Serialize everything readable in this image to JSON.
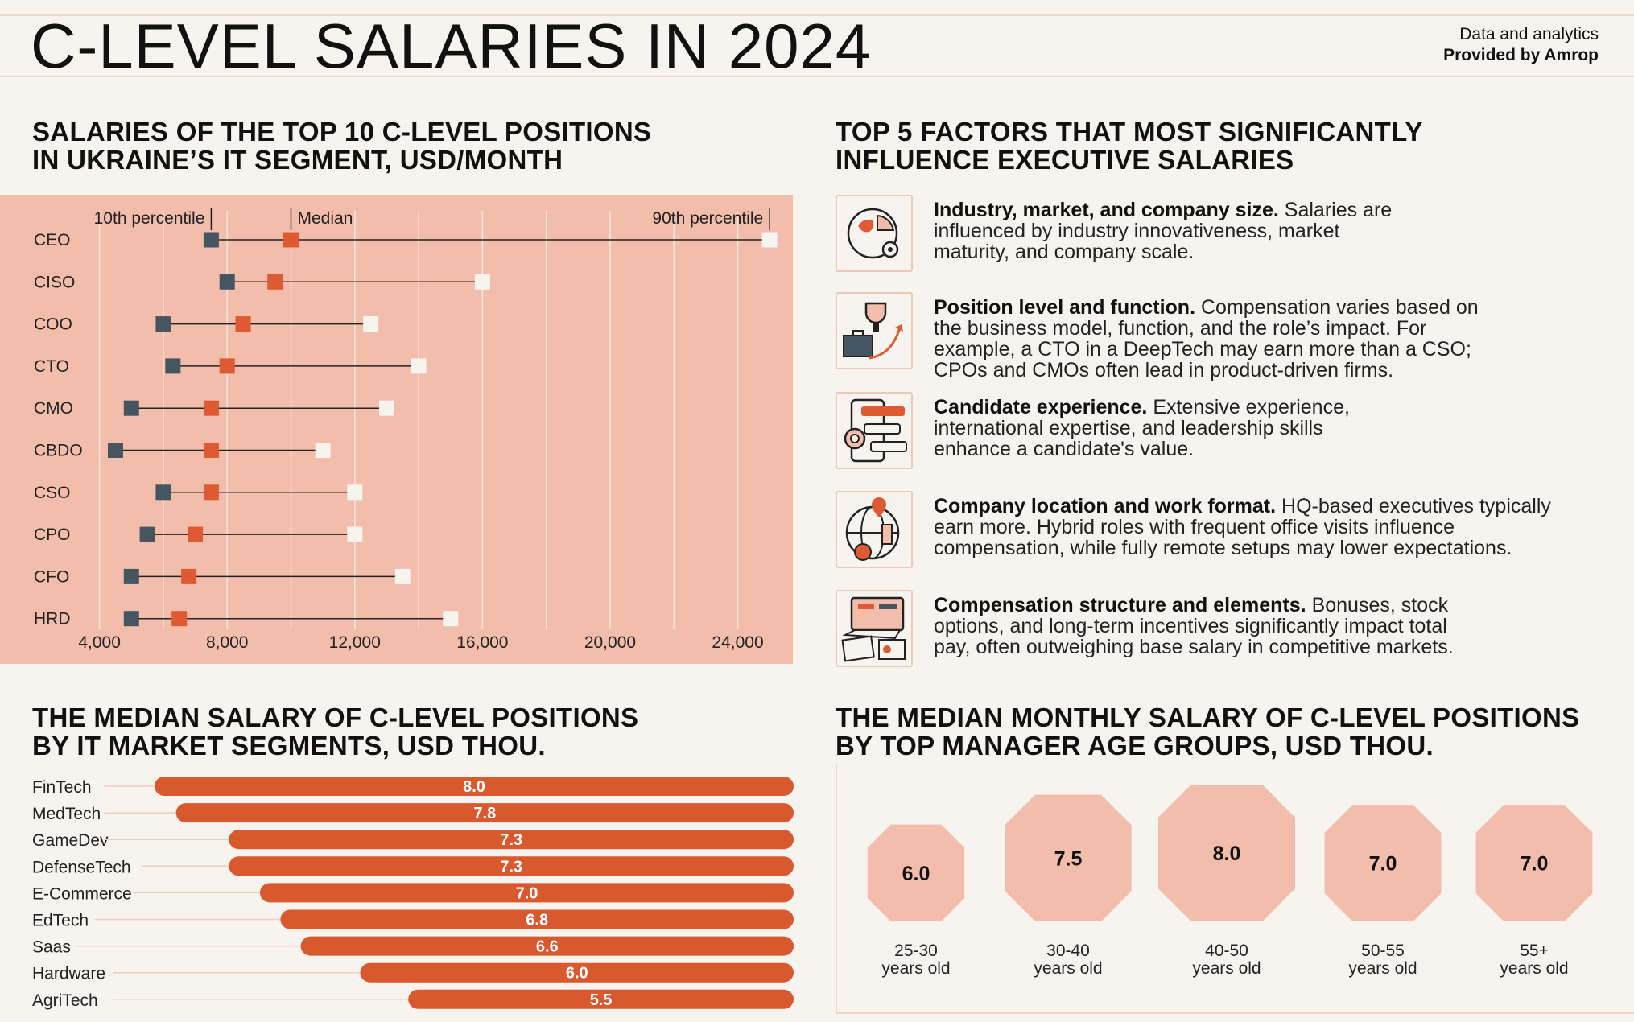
{
  "header": {
    "title": "C-LEVEL SALARIES IN 2024",
    "credit_line1": "Data and analytics",
    "credit_line2": "Provided by Amrop"
  },
  "sections": {
    "dumbbell_title_1": "SALARIES OF THE TOP 10 C-LEVEL POSITIONS",
    "dumbbell_title_2": "IN UKRAINE’S IT SEGMENT, USD/MONTH",
    "factors_title_1": "TOP 5 FACTORS THAT MOST SIGNIFICANTLY",
    "factors_title_2": "INFLUENCE EXECUTIVE SALARIES",
    "segments_title_1": "THE MEDIAN SALARY OF C-LEVEL POSITIONS",
    "segments_title_2": "BY IT MARKET SEGMENTS, USD THOU.",
    "ages_title_1": "THE MEDIAN MONTHLY SALARY OF C-LEVEL POSITIONS",
    "ages_title_2": "BY TOP MANAGER AGE GROUPS, USD THOU."
  },
  "factors": [
    {
      "icon": "globe-chart-icon",
      "bold": "Industry, market, and company size.",
      "lines": [
        "Salaries are",
        "influenced by industry innovativeness, market",
        "maturity, and company scale."
      ]
    },
    {
      "icon": "trophy-briefcase-icon",
      "bold": "Position level and function.",
      "lines": [
        "Compensation varies based on",
        "the business model, function, and the role’s impact. For",
        "example, a CTO in a DeepTech may earn more than a CSO;",
        "CPOs and CMOs often lead in product-driven firms."
      ]
    },
    {
      "icon": "rating-profile-icon",
      "bold": "Candidate experience.",
      "lines": [
        "Extensive experience,",
        "international expertise, and leadership skills",
        "enhance a candidate's value."
      ]
    },
    {
      "icon": "globe-location-icon",
      "bold": "Company location and work format.",
      "lines": [
        "HQ-based executives typically",
        "earn more. Hybrid roles with frequent office visits influence",
        "compensation, while fully remote setups may lower expectations."
      ]
    },
    {
      "icon": "laptop-documents-icon",
      "bold": "Compensation structure and elements.",
      "lines": [
        "Bonuses, stock",
        "options, and long-term incentives significantly impact total",
        "pay, often outweighing base salary in competitive markets."
      ]
    }
  ],
  "colors": {
    "panel": "#f3bdab",
    "p10": "#455661",
    "median": "#dd5a32",
    "p90": "#f7f3ee",
    "bar": "#d9592f",
    "octagon": "#f3bdab"
  },
  "chart_data": [
    {
      "type": "dumbbell",
      "title": "SALARIES OF THE TOP 10 C-LEVEL POSITIONS IN UKRAINE’S IT SEGMENT, USD/MONTH",
      "legend": [
        "10th percentile",
        "Median",
        "90th percentile"
      ],
      "categories": [
        "CEO",
        "CISO",
        "COO",
        "CTO",
        "CMO",
        "CBDO",
        "CSO",
        "CPO",
        "CFO",
        "HRD"
      ],
      "series": [
        {
          "name": "10th percentile",
          "values": [
            7500,
            8000,
            6000,
            6300,
            5000,
            4500,
            6000,
            5500,
            5000,
            5000
          ]
        },
        {
          "name": "Median",
          "values": [
            10000,
            9500,
            8500,
            8000,
            7500,
            7500,
            7500,
            7000,
            6800,
            6500
          ]
        },
        {
          "name": "90th percentile",
          "values": [
            25000,
            16000,
            12500,
            14000,
            13000,
            11000,
            12000,
            12000,
            13500,
            15000
          ]
        }
      ],
      "xlim": [
        3000,
        25500
      ],
      "xticks": [
        4000,
        8000,
        12000,
        16000,
        20000,
        24000
      ],
      "xtick_labels": [
        "4,000",
        "8,000",
        "12,000",
        "16,000",
        "20,000",
        "24,000"
      ],
      "grid": true
    },
    {
      "type": "bar",
      "title": "THE MEDIAN SALARY OF C-LEVEL POSITIONS BY IT MARKET SEGMENTS, USD THOU.",
      "categories": [
        "FinTech",
        "MedTech",
        "GameDev",
        "DefenseTech",
        "E-Commerce",
        "EdTech",
        "Saas",
        "Hardware",
        "AgriTech"
      ],
      "values": [
        8.0,
        7.8,
        7.3,
        7.3,
        7.0,
        6.8,
        6.6,
        6.0,
        5.5
      ],
      "value_labels": [
        "8.0",
        "7.8",
        "7.3",
        "7.3",
        "7.0",
        "6.8",
        "6.6",
        "6.0",
        "5.5"
      ]
    },
    {
      "type": "octagon-bubbles",
      "title": "THE MEDIAN MONTHLY SALARY OF C-LEVEL POSITIONS BY TOP MANAGER AGE GROUPS, USD THOU.",
      "categories": [
        "25-30 years old",
        "30-40 years old",
        "40-50 years old",
        "50-55 years old",
        "55+ years old"
      ],
      "label_lines": [
        [
          "25-30",
          "years old"
        ],
        [
          "30-40",
          "years old"
        ],
        [
          "40-50",
          "years old"
        ],
        [
          "50-55",
          "years old"
        ],
        [
          "55+",
          "years old"
        ]
      ],
      "values": [
        6.0,
        7.5,
        8.0,
        7.0,
        7.0
      ],
      "value_labels": [
        "6.0",
        "7.5",
        "8.0",
        "7.0",
        "7.0"
      ]
    }
  ]
}
